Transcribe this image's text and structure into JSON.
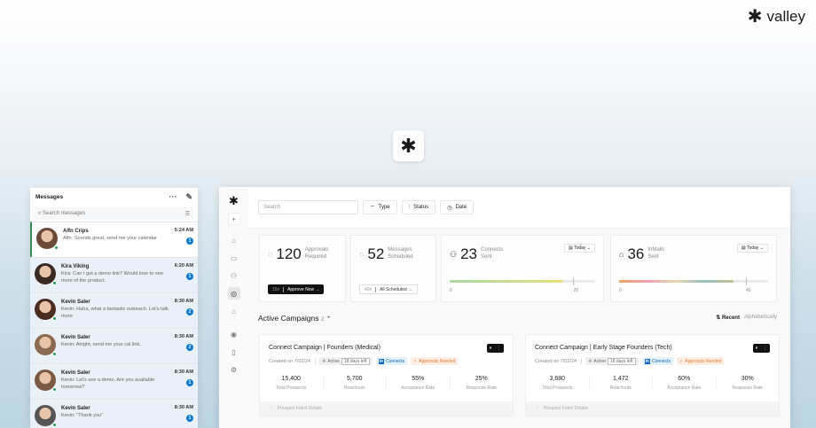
{
  "brand": {
    "name": "valley"
  },
  "messages": {
    "title": "Messages",
    "search_placeholder": "Search messages",
    "items": [
      {
        "name": "Alfn Crips",
        "text": "Alfn: Sounds great, send me your calendar",
        "time": "5:24 AM",
        "unread": "1",
        "avatar": "#6b4a3a"
      },
      {
        "name": "Kira Viking",
        "text": "Kira: Can I get a demo link? Would love to see more of the product.",
        "time": "6:20 AM",
        "unread": "1",
        "avatar": "#3a2a24"
      },
      {
        "name": "Kevin Saler",
        "text": "Kevin: Haha, what a fantastic outreach. Let's talk more",
        "time": "8:30 AM",
        "unread": "2",
        "avatar": "#4a2c20"
      },
      {
        "name": "Kevin Saler",
        "text": "Kevin: Alright, send me your cal link.",
        "time": "8:30 AM",
        "unread": "2",
        "avatar": "#8a6a50"
      },
      {
        "name": "Kevin Saler",
        "text": "Kevin: Let's see a demo. Are you available tomorrow?",
        "time": "8:30 AM",
        "unread": "1",
        "avatar": "#7a5a44"
      },
      {
        "name": "Kevin Saler",
        "text": "Kevin: \"Thank you\"",
        "time": "8:30 AM",
        "unread": "1",
        "avatar": "#555555"
      }
    ]
  },
  "toolbar": {
    "search_placeholder": "Search",
    "type": "Type",
    "status": "Status",
    "date": "Date"
  },
  "stats": [
    {
      "value": "120",
      "label1": "Approvals",
      "label2": "Required",
      "pill_count": "15x",
      "pill_action": "Approve Now →"
    },
    {
      "value": "52",
      "label1": "Messages",
      "label2": "Scheduled",
      "pill_count": "40x",
      "pill_action": "All Scheduled →"
    },
    {
      "value": "23",
      "label1": "Connects",
      "label2": "Sent",
      "range": "Today",
      "min": "0",
      "max": "25",
      "progress": 0.92
    },
    {
      "value": "36",
      "label1": "InMails",
      "label2": "Sent",
      "range": "Today",
      "min": "0",
      "max": "40",
      "progress": 0.9
    }
  ],
  "campaigns_section": {
    "title": "Active Campaigns",
    "count": "2",
    "sort_recent": "Recent",
    "sort_alpha": "Alphabetically"
  },
  "campaigns": [
    {
      "title": "Connect Campaign | Founders (Medical)",
      "created": "Created on 7/02/24",
      "status": "Active",
      "days_left": "18 days left",
      "channel": "Connects",
      "approval": "Approvals Needed",
      "metrics": [
        {
          "v": "15,400",
          "k": "Total Prospects"
        },
        {
          "v": "5,700",
          "k": "Reachouts"
        },
        {
          "v": "55%",
          "k": "Acceptance Rate"
        },
        {
          "v": "25%",
          "k": "Response Rate"
        }
      ],
      "details": "Prospect Fetch Details"
    },
    {
      "title": "Connect Campaign | Early Stage Founders (Tech)",
      "created": "Created on 7/02/24",
      "status": "Active",
      "days_left": "18 days left",
      "channel": "Connects",
      "approval": "Approvals Needed",
      "metrics": [
        {
          "v": "3,680",
          "k": "Total Prospects"
        },
        {
          "v": "1,472",
          "k": "Reachouts"
        },
        {
          "v": "60%",
          "k": "Acceptance Rate"
        },
        {
          "v": "30%",
          "k": "Response Rate"
        }
      ],
      "details": "Prospect Fetch Details"
    }
  ],
  "colors": {
    "accent": "#0a7bd0",
    "online": "#1f9d55",
    "approval": "#e8772e",
    "linkedin": "#0a66c2"
  }
}
